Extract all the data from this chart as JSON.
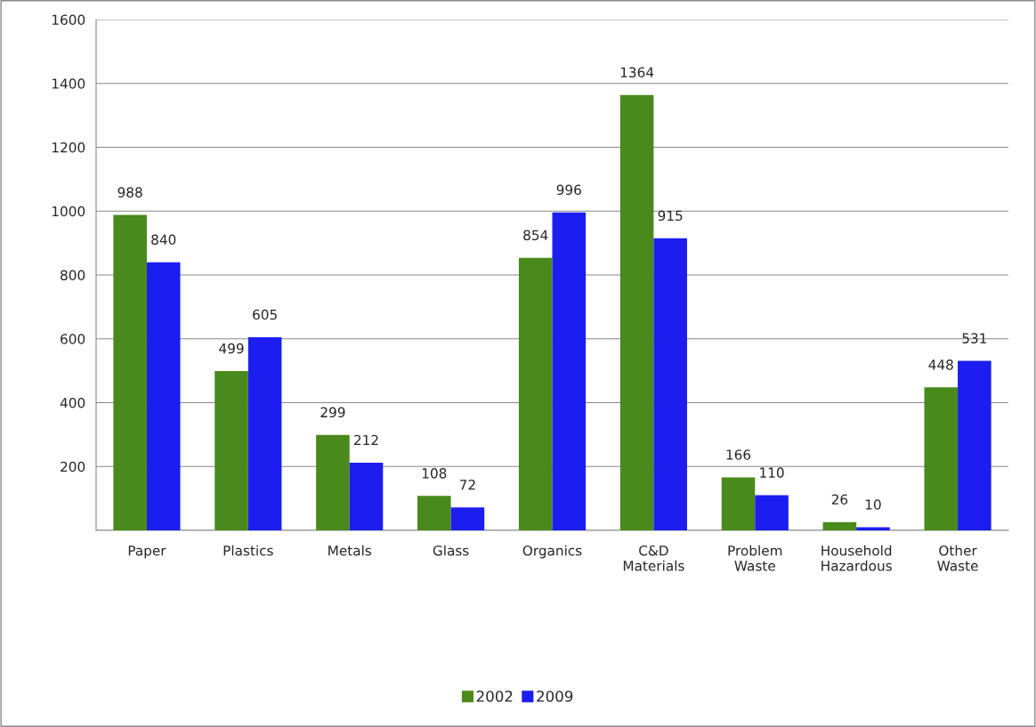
{
  "chart_data": {
    "type": "bar",
    "categories": [
      "Paper",
      "Plastics",
      "Metals",
      "Glass",
      "Organics",
      "C&D\nMaterials",
      "Problem\nWaste",
      "Household\nHazardous",
      "Other\nWaste"
    ],
    "series": [
      {
        "name": "2002",
        "color": "#4a8a1c",
        "values": [
          988,
          499,
          299,
          108,
          854,
          1364,
          166,
          26,
          448
        ]
      },
      {
        "name": "2009",
        "color": "#1c1ef0",
        "values": [
          840,
          605,
          212,
          72,
          996,
          915,
          110,
          10,
          531
        ]
      }
    ],
    "ylim": [
      0,
      1600
    ],
    "yticks": [
      {
        "value": 0,
        "label": null
      },
      200,
      400,
      600,
      800,
      1000,
      1200,
      1400,
      1600
    ],
    "grid": "y",
    "legend": "bottom",
    "data_labels": true
  }
}
